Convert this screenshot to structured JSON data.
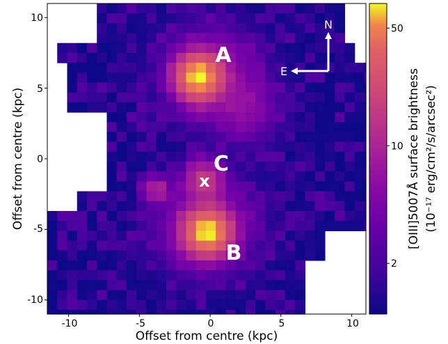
{
  "chart_data": {
    "type": "heatmap",
    "xlabel": "Offset from centre (kpc)",
    "ylabel": "Offset from centre (kpc)",
    "xlim": [
      -11.5,
      11
    ],
    "ylim": [
      -11,
      11
    ],
    "x_ticks": [
      -10,
      -5,
      0,
      5,
      10
    ],
    "x_tick_labels": [
      "-10",
      "-5",
      "0",
      "5",
      "10"
    ],
    "y_ticks": [
      -10,
      -5,
      0,
      5,
      10
    ],
    "y_tick_labels": [
      "-10",
      "-5",
      "0",
      "5",
      "10"
    ],
    "colormap": "plasma",
    "colorbar": {
      "label_line1": "[OIII]5007Å surface brightness",
      "label_line2": "(10⁻¹⁷ erg/cm²/s/arcsec²)",
      "scale": "log",
      "min": 1,
      "max": 70,
      "ticks": [
        2,
        10,
        50
      ],
      "tick_labels": [
        "2",
        "10",
        "50"
      ]
    },
    "blobs": [
      {
        "x": -0.8,
        "y": 5.8,
        "peak": 65,
        "sigma": 0.9
      },
      {
        "x": 0.0,
        "y": 6.0,
        "peak": 6,
        "sigma": 1.9
      },
      {
        "x": -0.2,
        "y": -5.2,
        "peak": 65,
        "sigma": 0.9
      },
      {
        "x": -0.3,
        "y": -4.8,
        "peak": 7,
        "sigma": 1.9
      },
      {
        "x": -0.4,
        "y": -1.5,
        "peak": 14,
        "sigma": 0.8
      },
      {
        "x": -3.8,
        "y": -2.2,
        "peak": 9,
        "sigma": 0.55
      },
      {
        "x": 2.5,
        "y": 3.5,
        "peak": 4,
        "sigma": 1.4
      }
    ],
    "annotations": [
      {
        "text": "A",
        "x": 0.9,
        "y": 7.1
      },
      {
        "text": "B",
        "x": 1.7,
        "y": -6.7
      },
      {
        "text": "C",
        "x": 0.9,
        "y": -0.3
      },
      {
        "text": "x",
        "x": -0.3,
        "y": -1.6
      }
    ],
    "compass": {
      "north": "N",
      "east": "E"
    }
  }
}
